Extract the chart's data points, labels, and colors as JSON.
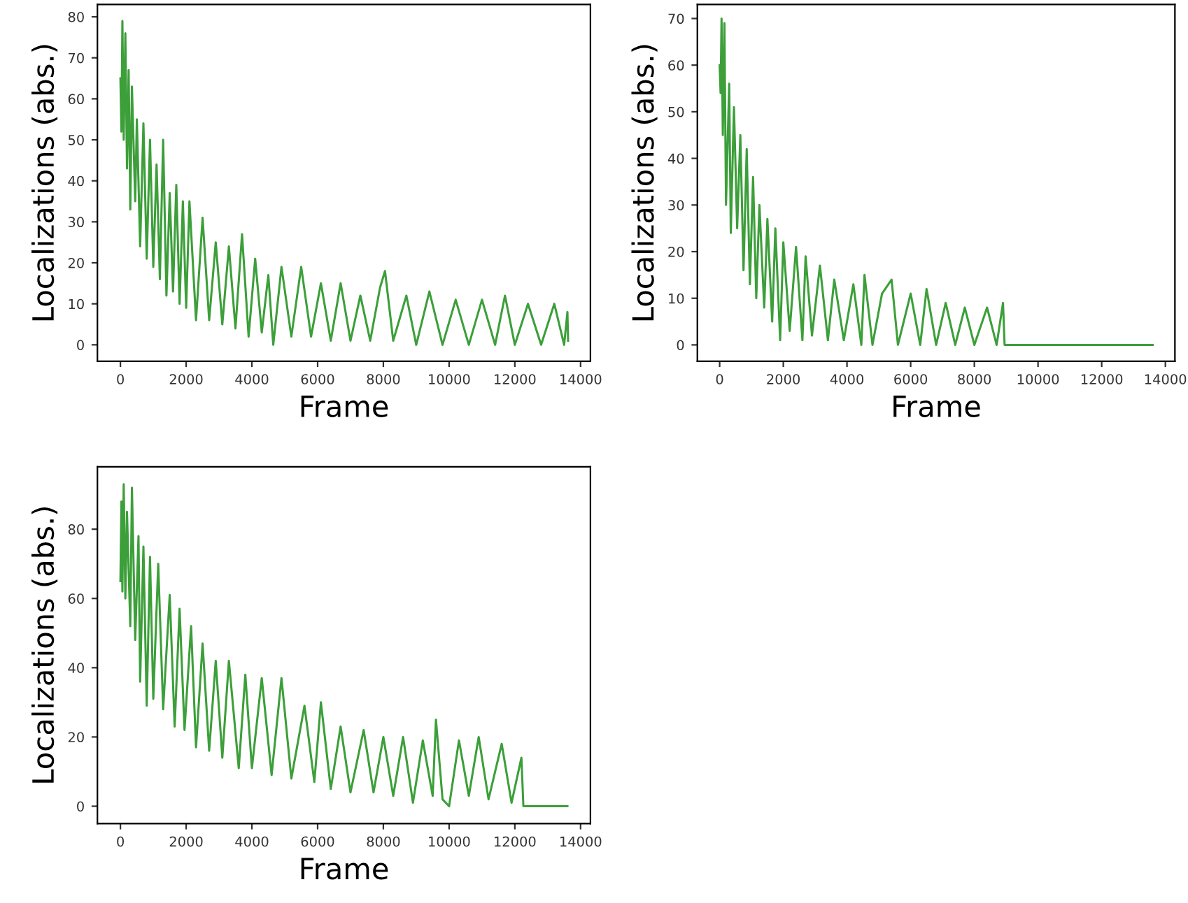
{
  "chart_data": [
    {
      "type": "line",
      "xlabel": "Frame",
      "ylabel": "Localizations (abs.)",
      "xlim": [
        -700,
        14300
      ],
      "ylim": [
        -4,
        83
      ],
      "xticks": [
        0,
        2000,
        4000,
        6000,
        8000,
        10000,
        12000,
        14000
      ],
      "yticks": [
        0,
        10,
        20,
        30,
        40,
        50,
        60,
        70,
        80
      ],
      "series": [
        {
          "color": "#3c9f3a",
          "x": [
            0,
            30,
            60,
            100,
            150,
            200,
            250,
            300,
            350,
            450,
            500,
            600,
            700,
            800,
            900,
            1000,
            1100,
            1200,
            1300,
            1400,
            1500,
            1600,
            1700,
            1800,
            1900,
            2000,
            2100,
            2300,
            2500,
            2700,
            2900,
            3100,
            3300,
            3500,
            3700,
            3900,
            4100,
            4300,
            4500,
            4650,
            4900,
            5200,
            5500,
            5800,
            6100,
            6400,
            6700,
            7000,
            7300,
            7600,
            7900,
            8050,
            8300,
            8700,
            9000,
            9400,
            9800,
            10200,
            10600,
            11000,
            11400,
            11700,
            12000,
            12400,
            12800,
            13200,
            13500,
            13600,
            13620
          ],
          "values": [
            65,
            52,
            79,
            50,
            76,
            43,
            67,
            33,
            63,
            35,
            55,
            24,
            54,
            21,
            50,
            19,
            44,
            16,
            50,
            12,
            37,
            13,
            39,
            10,
            35,
            9,
            35,
            6,
            31,
            6,
            25,
            5,
            24,
            4,
            27,
            2,
            21,
            3,
            17,
            0,
            19,
            2,
            19,
            2,
            15,
            1,
            15,
            1,
            12,
            1,
            14,
            18,
            1,
            12,
            0,
            13,
            0,
            11,
            0,
            11,
            0,
            12,
            0,
            10,
            0,
            10,
            0,
            8,
            1
          ]
        }
      ]
    },
    {
      "type": "line",
      "xlabel": "Frame",
      "ylabel": "Localizations (abs.)",
      "xlim": [
        -700,
        14300
      ],
      "ylim": [
        -3.5,
        73
      ],
      "xticks": [
        0,
        2000,
        4000,
        6000,
        8000,
        10000,
        12000,
        14000
      ],
      "yticks": [
        0,
        10,
        20,
        30,
        40,
        50,
        60,
        70
      ],
      "series": [
        {
          "color": "#3c9f3a",
          "x": [
            0,
            30,
            60,
            100,
            150,
            200,
            300,
            350,
            450,
            550,
            650,
            750,
            850,
            950,
            1050,
            1150,
            1250,
            1400,
            1500,
            1650,
            1750,
            1900,
            2000,
            2200,
            2400,
            2600,
            2700,
            2900,
            3150,
            3400,
            3600,
            3900,
            4200,
            4450,
            4550,
            4800,
            5100,
            5400,
            5600,
            6000,
            6300,
            6500,
            6800,
            7100,
            7400,
            7700,
            8000,
            8400,
            8700,
            8900,
            8950,
            13600
          ],
          "values": [
            60,
            54,
            70,
            45,
            69,
            30,
            56,
            24,
            51,
            25,
            45,
            16,
            42,
            13,
            36,
            10,
            30,
            8,
            27,
            5,
            25,
            1,
            22,
            3,
            21,
            1,
            19,
            2,
            17,
            1,
            14,
            1,
            13,
            0,
            15,
            0,
            11,
            14,
            0,
            11,
            0,
            12,
            0,
            9,
            0,
            8,
            0,
            8,
            0,
            9,
            0,
            0
          ]
        }
      ]
    },
    {
      "type": "line",
      "xlabel": "Frame",
      "ylabel": "Localizations (abs.)",
      "xlim": [
        -700,
        14300
      ],
      "ylim": [
        -5,
        98
      ],
      "xticks": [
        0,
        2000,
        4000,
        6000,
        8000,
        10000,
        12000,
        14000
      ],
      "yticks": [
        0,
        20,
        40,
        60,
        80
      ],
      "series": [
        {
          "color": "#3c9f3a",
          "x": [
            0,
            30,
            60,
            100,
            150,
            200,
            300,
            350,
            450,
            550,
            600,
            700,
            800,
            900,
            1000,
            1150,
            1300,
            1500,
            1650,
            1800,
            1950,
            2150,
            2300,
            2500,
            2700,
            2900,
            3100,
            3300,
            3600,
            3800,
            4000,
            4300,
            4600,
            4900,
            5200,
            5600,
            5900,
            6100,
            6400,
            6700,
            7000,
            7400,
            7700,
            8000,
            8300,
            8600,
            8900,
            9200,
            9500,
            9600,
            9800,
            10000,
            10300,
            10600,
            10900,
            11200,
            11600,
            11900,
            12200,
            12260,
            13600
          ],
          "values": [
            65,
            88,
            62,
            93,
            60,
            85,
            52,
            92,
            48,
            78,
            36,
            75,
            29,
            72,
            31,
            70,
            28,
            61,
            23,
            57,
            22,
            52,
            17,
            47,
            16,
            42,
            14,
            42,
            11,
            38,
            11,
            37,
            9,
            37,
            8,
            29,
            7,
            30,
            5,
            23,
            4,
            22,
            4,
            20,
            3,
            20,
            1,
            19,
            3,
            25,
            2,
            0,
            19,
            3,
            20,
            2,
            18,
            1,
            14,
            0,
            0
          ]
        }
      ]
    }
  ]
}
